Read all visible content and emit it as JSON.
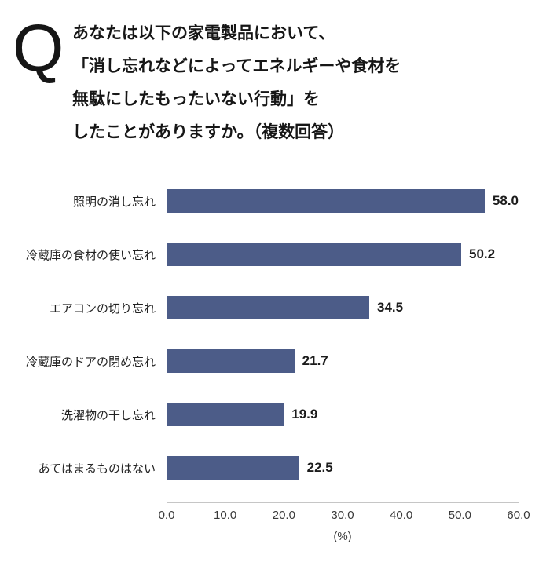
{
  "header": {
    "q_label": "Q",
    "question_lines": [
      "あなたは以下の家電製品において、",
      "「消し忘れなどによってエネルギーや食材を",
      "無駄にしたもったいない行動」を",
      "したことがありますか。（複数回答）"
    ]
  },
  "chart_data": {
    "type": "bar",
    "orientation": "horizontal",
    "title": "あなたは以下の家電製品において、「消し忘れなどによってエネルギーや食材を無駄にしたもったいない行動」をしたことがありますか。（複数回答）",
    "categories": [
      "照明の消し忘れ",
      "冷蔵庫の食材の使い忘れ",
      "エアコンの切り忘れ",
      "冷蔵庫のドアの閉め忘れ",
      "洗濯物の干し忘れ",
      "あてはまるものはない"
    ],
    "values": [
      58.0,
      50.2,
      34.5,
      21.7,
      19.9,
      22.5
    ],
    "value_labels": [
      "58.0",
      "50.2",
      "34.5",
      "21.7",
      "19.9",
      "22.5"
    ],
    "x_ticks": [
      "0.0",
      "10.0",
      "20.0",
      "30.0",
      "40.0",
      "50.0",
      "60.0"
    ],
    "xlim": [
      0,
      60
    ],
    "xlabel": "(%)",
    "ylabel": "",
    "grid": false,
    "legend": false,
    "bar_color": "#4c5c88",
    "axis_line_color": "#c6c6c6"
  }
}
